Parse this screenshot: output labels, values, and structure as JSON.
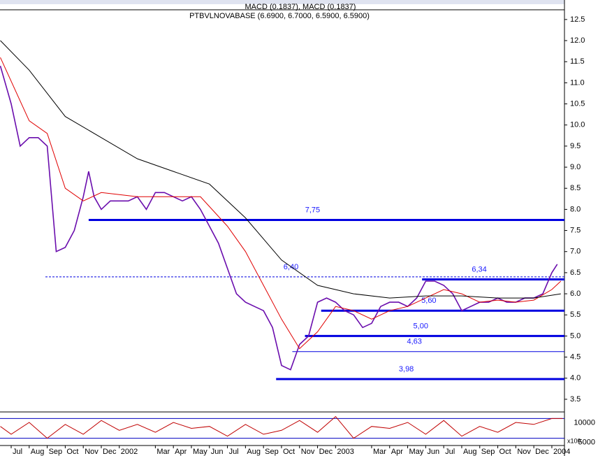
{
  "header": "MACD (0.1837), MACD (0.1837)",
  "chart_data": {
    "type": "line",
    "title": "PTBVLNOVABASE (6.6900, 6.7000, 6.5900, 6.5900)",
    "xlim": [
      -0.62,
      30.7
    ],
    "xticks": [
      {
        "value": 0,
        "label": "Jul"
      },
      {
        "value": 1,
        "label": "Aug"
      },
      {
        "value": 2,
        "label": "Sep"
      },
      {
        "value": 3,
        "label": "Oct"
      },
      {
        "value": 4,
        "label": "Nov"
      },
      {
        "value": 5,
        "label": "Dec"
      },
      {
        "value": 6,
        "label": "2002"
      },
      {
        "value": 8,
        "label": "Mar"
      },
      {
        "value": 9,
        "label": "Apr"
      },
      {
        "value": 10,
        "label": "May"
      },
      {
        "value": 11,
        "label": "Jun"
      },
      {
        "value": 12,
        "label": "Jul"
      },
      {
        "value": 13,
        "label": "Aug"
      },
      {
        "value": 14,
        "label": "Sep"
      },
      {
        "value": 15,
        "label": "Oct"
      },
      {
        "value": 16,
        "label": "Nov"
      },
      {
        "value": 17,
        "label": "Dec"
      },
      {
        "value": 18,
        "label": "2003"
      },
      {
        "value": 20,
        "label": "Mar"
      },
      {
        "value": 21,
        "label": "Apr"
      },
      {
        "value": 22,
        "label": "May"
      },
      {
        "value": 23,
        "label": "Jun"
      },
      {
        "value": 24,
        "label": "Jul"
      },
      {
        "value": 25,
        "label": "Aug"
      },
      {
        "value": 26,
        "label": "Sep"
      },
      {
        "value": 27,
        "label": "Oct"
      },
      {
        "value": 28,
        "label": "Nov"
      },
      {
        "value": 29,
        "label": "Dec"
      },
      {
        "value": 30,
        "label": "2004"
      }
    ],
    "ylim": [
      3.2,
      12.73
    ],
    "yticks": [
      3.5,
      {
        "value": 4,
        "label": "4.0"
      },
      4.5,
      {
        "value": 5,
        "label": "5.0"
      },
      5.5,
      {
        "value": 6,
        "label": "6.0"
      },
      6.5,
      {
        "value": 7,
        "label": "7.0"
      },
      7.5,
      {
        "value": 8,
        "label": "8.0"
      },
      8.5,
      {
        "value": 9,
        "label": "9.0"
      },
      9.5,
      {
        "value": 10,
        "label": "10.0"
      },
      10.5,
      {
        "value": 11,
        "label": "11.0"
      },
      11.5,
      {
        "value": 12,
        "label": "12.0"
      },
      12.5
    ],
    "series": [
      {
        "color": "#6a0dad",
        "x": [
          -0.6,
          0,
          0.5,
          1,
          1.5,
          2,
          2.5,
          3,
          3.5,
          4,
          4.3,
          4.6,
          5,
          5.5,
          6,
          6.5,
          7,
          7.5,
          8,
          8.5,
          9,
          9.5,
          10,
          10.5,
          11,
          11.5,
          12,
          12.5,
          13,
          13.5,
          14,
          14.5,
          15,
          15.5,
          16,
          16.5,
          17,
          17.5,
          18,
          18.5,
          19,
          19.5,
          20,
          20.5,
          21,
          21.5,
          22,
          22.5,
          23,
          23.5,
          24,
          24.5,
          25,
          25.5,
          26,
          26.5,
          27,
          27.5,
          28,
          28.5,
          29,
          29.5,
          30,
          30.3
        ],
        "values": [
          11.4,
          10.5,
          9.5,
          9.7,
          9.7,
          9.5,
          7.0,
          7.1,
          7.5,
          8.3,
          8.9,
          8.3,
          8.0,
          8.2,
          8.2,
          8.2,
          8.3,
          8.0,
          8.4,
          8.4,
          8.3,
          8.2,
          8.3,
          8.0,
          7.6,
          7.2,
          6.6,
          6.0,
          5.8,
          5.7,
          5.6,
          5.2,
          4.3,
          4.2,
          4.8,
          5.0,
          5.8,
          5.9,
          5.8,
          5.6,
          5.5,
          5.2,
          5.3,
          5.7,
          5.8,
          5.8,
          5.7,
          5.9,
          6.3,
          6.3,
          6.2,
          6.0,
          5.6,
          5.7,
          5.8,
          5.8,
          5.9,
          5.8,
          5.8,
          5.9,
          5.9,
          6.0,
          6.5,
          6.7
        ]
      },
      {
        "color": "#e00000",
        "x": [
          -0.6,
          1,
          2,
          3,
          4,
          5,
          7,
          9,
          10.5,
          12,
          13,
          14,
          15,
          16,
          17,
          18,
          19,
          20,
          21,
          22,
          23,
          24,
          25,
          26,
          27,
          28,
          29,
          30,
          30.5
        ],
        "values": [
          11.6,
          10.1,
          9.8,
          8.5,
          8.2,
          8.4,
          8.3,
          8.3,
          8.3,
          7.6,
          7.0,
          6.2,
          5.4,
          4.7,
          5.1,
          5.7,
          5.6,
          5.4,
          5.6,
          5.7,
          5.9,
          6.1,
          6.0,
          5.8,
          5.85,
          5.8,
          5.85,
          6.1,
          6.3
        ]
      },
      {
        "color": "#000000",
        "x": [
          -0.6,
          1,
          3,
          5,
          7,
          9,
          11,
          13,
          15,
          17,
          19,
          21,
          23,
          25,
          27,
          29,
          30.5
        ],
        "values": [
          12.0,
          11.3,
          10.2,
          9.7,
          9.2,
          8.9,
          8.6,
          7.8,
          6.8,
          6.2,
          6.0,
          5.9,
          5.95,
          5.95,
          5.9,
          5.9,
          6.0
        ]
      }
    ],
    "levels": [
      {
        "value": 7.75,
        "label": "7,75",
        "start": 4.3,
        "style": "thick"
      },
      {
        "value": 6.4,
        "label": "6,40",
        "start": 1.9,
        "style": "dashed"
      },
      {
        "value": 6.34,
        "label": "6,34",
        "start": 22.8,
        "style": "thick"
      },
      {
        "value": 5.6,
        "label": "5,60",
        "start": 17.2,
        "style": "thick"
      },
      {
        "value": 5.0,
        "label": "5,00",
        "start": 16.3,
        "style": "thick"
      },
      {
        "value": 4.63,
        "label": "4,63",
        "start": 15.6,
        "style": "thin"
      },
      {
        "value": 3.98,
        "label": "3,98",
        "start": 14.7,
        "style": "thick"
      }
    ],
    "oscillator": {
      "color": "#c00000",
      "ylim": [
        3148,
        11667
      ],
      "yticks": [
        5000,
        10000
      ],
      "unit": "x100",
      "x": [
        -0.6,
        0,
        1,
        2,
        3,
        4,
        5,
        6,
        7,
        8,
        9,
        10,
        11,
        12,
        13,
        14,
        15,
        16,
        17,
        18,
        19,
        20,
        21,
        22,
        23,
        24,
        25,
        26,
        27,
        28,
        29,
        30,
        30.6
      ],
      "values": [
        8000,
        6000,
        9000,
        5000,
        8500,
        6000,
        9500,
        7000,
        8500,
        6500,
        9000,
        7500,
        8000,
        5500,
        8500,
        6000,
        7000,
        9500,
        6500,
        10500,
        5000,
        8000,
        7500,
        9000,
        6000,
        9500,
        5500,
        8000,
        6500,
        9000,
        8500,
        10000,
        10000
      ]
    }
  }
}
